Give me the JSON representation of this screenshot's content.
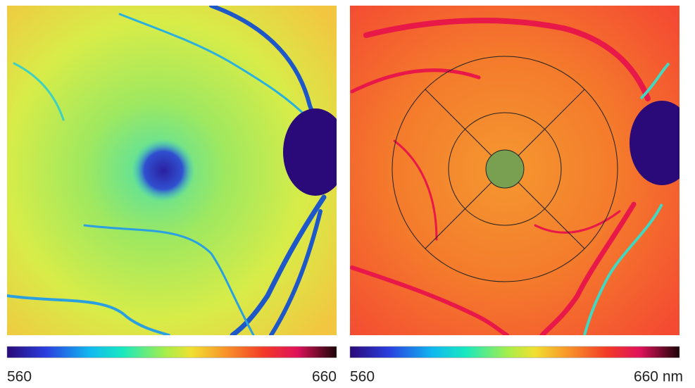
{
  "panels": [
    {
      "colorbar_labels": [
        "560",
        "660"
      ]
    },
    {
      "colorbar_labels": [
        "560",
        "660 nm"
      ]
    }
  ]
}
